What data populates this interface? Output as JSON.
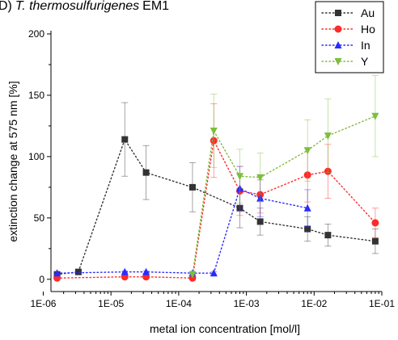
{
  "chart_data": {
    "type": "scatter",
    "title_prefix": "D)",
    "title_species": "T. thermosulfurigenes",
    "title_suffix": "EM1",
    "xlabel": "metal ion concentration [mol/l]",
    "ylabel": "extinction change at 575 nm [%]",
    "x_scale": "log",
    "xlim": [
      1.3e-06,
      0.1
    ],
    "ylim": [
      -10,
      200
    ],
    "x_ticks": [
      "1E-06",
      "1E-05",
      "1E-04",
      "1E-03",
      "1E-02",
      "1E-01"
    ],
    "y_ticks": [
      0,
      50,
      100,
      150,
      200
    ],
    "grid": false,
    "legend_position": "top-right",
    "series": [
      {
        "name": "Au",
        "color": "#333333",
        "marker": "square",
        "x": [
          1.6e-06,
          3.3e-06,
          1.6e-05,
          3.3e-05,
          0.00016,
          0.0008,
          0.0016,
          0.008,
          0.016,
          0.08
        ],
        "y": [
          4,
          6,
          114,
          87,
          75,
          58,
          47,
          41,
          36,
          31
        ],
        "err": [
          2,
          2,
          30,
          22,
          20,
          16,
          11,
          10,
          9,
          10
        ]
      },
      {
        "name": "Ho",
        "color": "#ff2a2a",
        "marker": "circle",
        "x": [
          1.6e-06,
          1.6e-05,
          3.3e-05,
          0.00016,
          0.00033,
          0.0008,
          0.0016,
          0.008,
          0.016,
          0.08
        ],
        "y": [
          1,
          2,
          2,
          1,
          113,
          72,
          69,
          85,
          88,
          46
        ],
        "err": [
          1,
          1,
          1,
          1,
          30,
          20,
          15,
          22,
          22,
          12
        ]
      },
      {
        "name": "In",
        "color": "#2a2aff",
        "marker": "triangle-up",
        "x": [
          1.6e-06,
          1.6e-05,
          3.3e-05,
          0.00016,
          0.00033,
          0.0008,
          0.0016,
          0.008
        ],
        "y": [
          5,
          6,
          6,
          5,
          5,
          74,
          66,
          58
        ],
        "err": [
          1,
          1,
          1,
          1,
          1,
          18,
          15,
          15
        ]
      },
      {
        "name": "Y",
        "color": "#7dbe3c",
        "marker": "triangle-down",
        "x": [
          0.00016,
          0.00033,
          0.0008,
          0.0016,
          0.008,
          0.016,
          0.08
        ],
        "y": [
          4,
          121,
          84,
          83,
          105,
          117,
          133
        ],
        "err": [
          1,
          30,
          22,
          20,
          25,
          30,
          33
        ]
      }
    ]
  }
}
